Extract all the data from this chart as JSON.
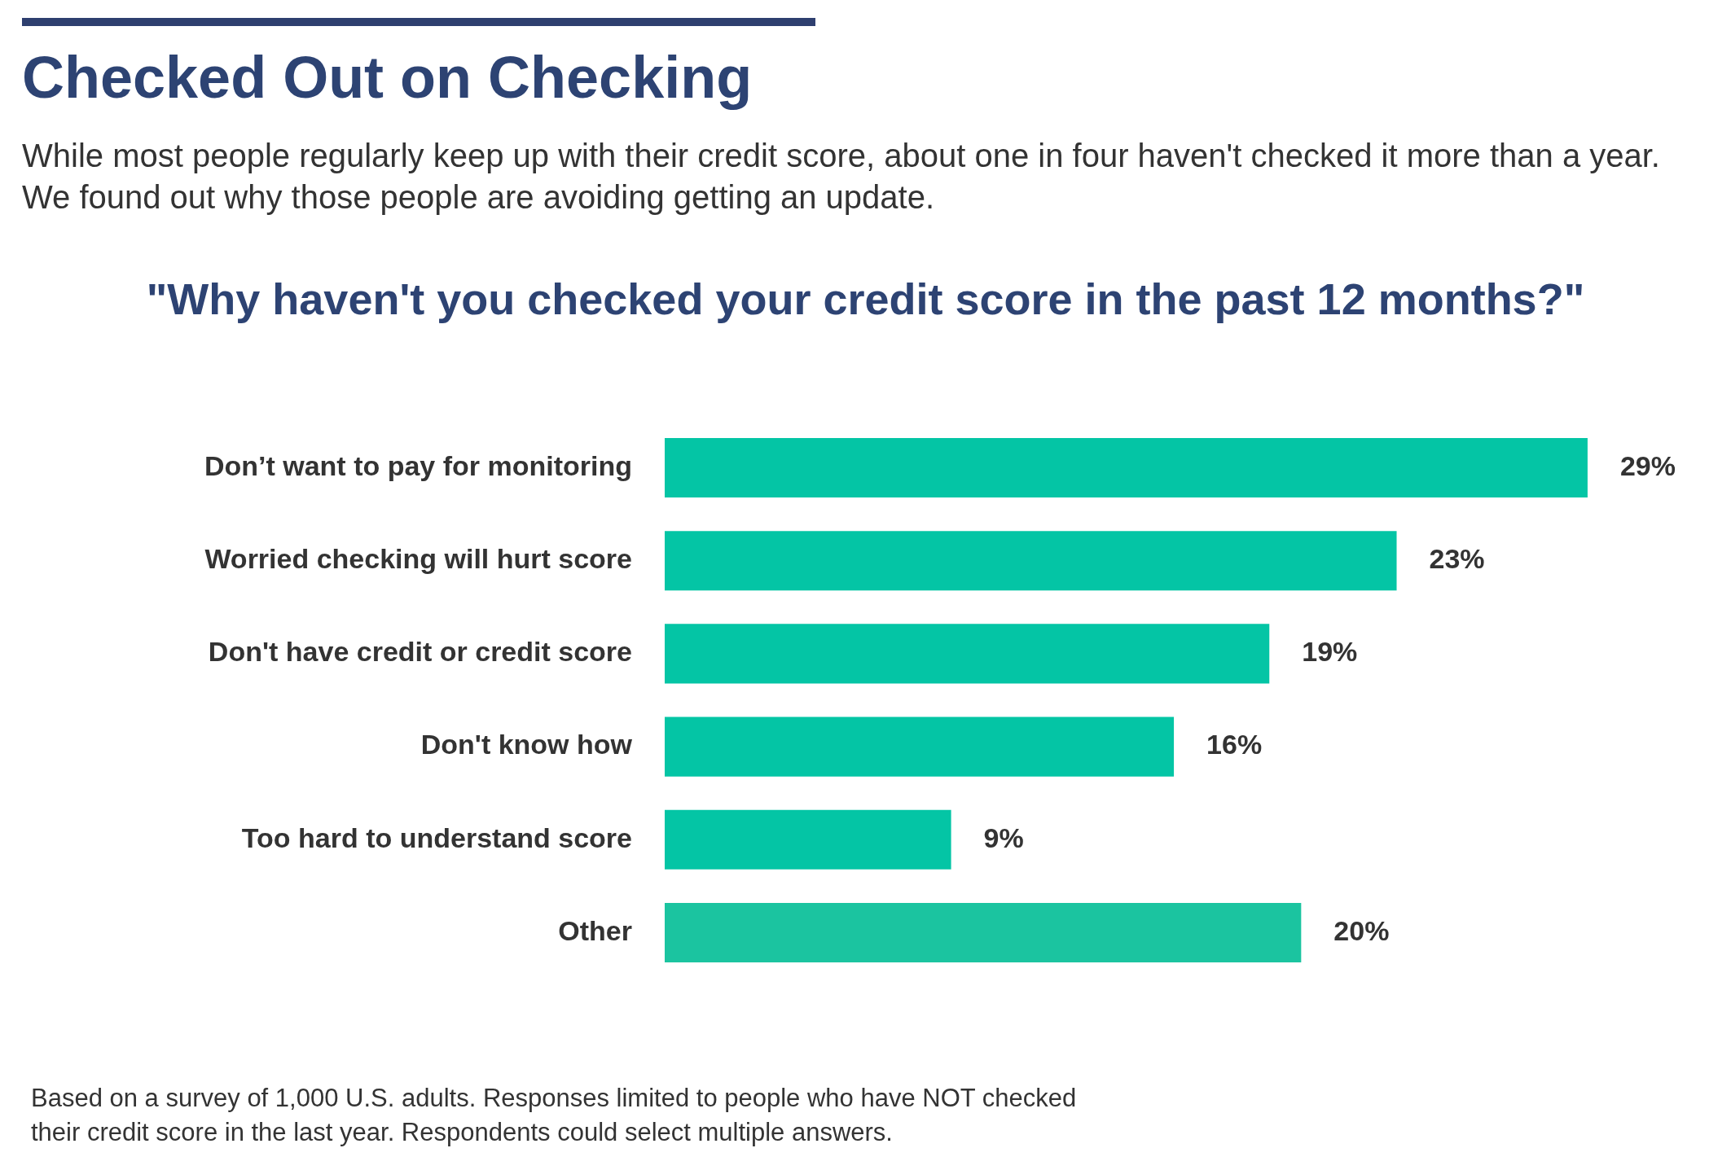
{
  "chart_data": {
    "type": "bar",
    "orientation": "horizontal",
    "title": "Checked Out on Checking",
    "subtitle": "While most people regularly keep up with their credit score, about one in four haven't checked it more than a year. We found out why those people are avoiding getting an update.",
    "categories": [
      "Don’t want to pay for monitoring",
      "Worried checking will hurt score",
      "Don't have credit or credit score",
      "Don't know how",
      "Too hard to understand score",
      "Other"
    ],
    "values": [
      29,
      23,
      19,
      16,
      9,
      20
    ],
    "colors": [
      "#04c5a5",
      "#04c5a5",
      "#04c5a5",
      "#04c5a5",
      "#04c5a5",
      "#1bc4a0"
    ],
    "value_labels": [
      "29%",
      "23%",
      "19%",
      "16%",
      "9%",
      "20%"
    ],
    "annotations": [
      "\"Why haven't you checked your credit score in the past 12 months?\"",
      "Based on a survey of 1,000 U.S. adults. Responses limited to people who have NOT checked their credit score in the last year. Respondents could select multiple answers."
    ]
  }
}
